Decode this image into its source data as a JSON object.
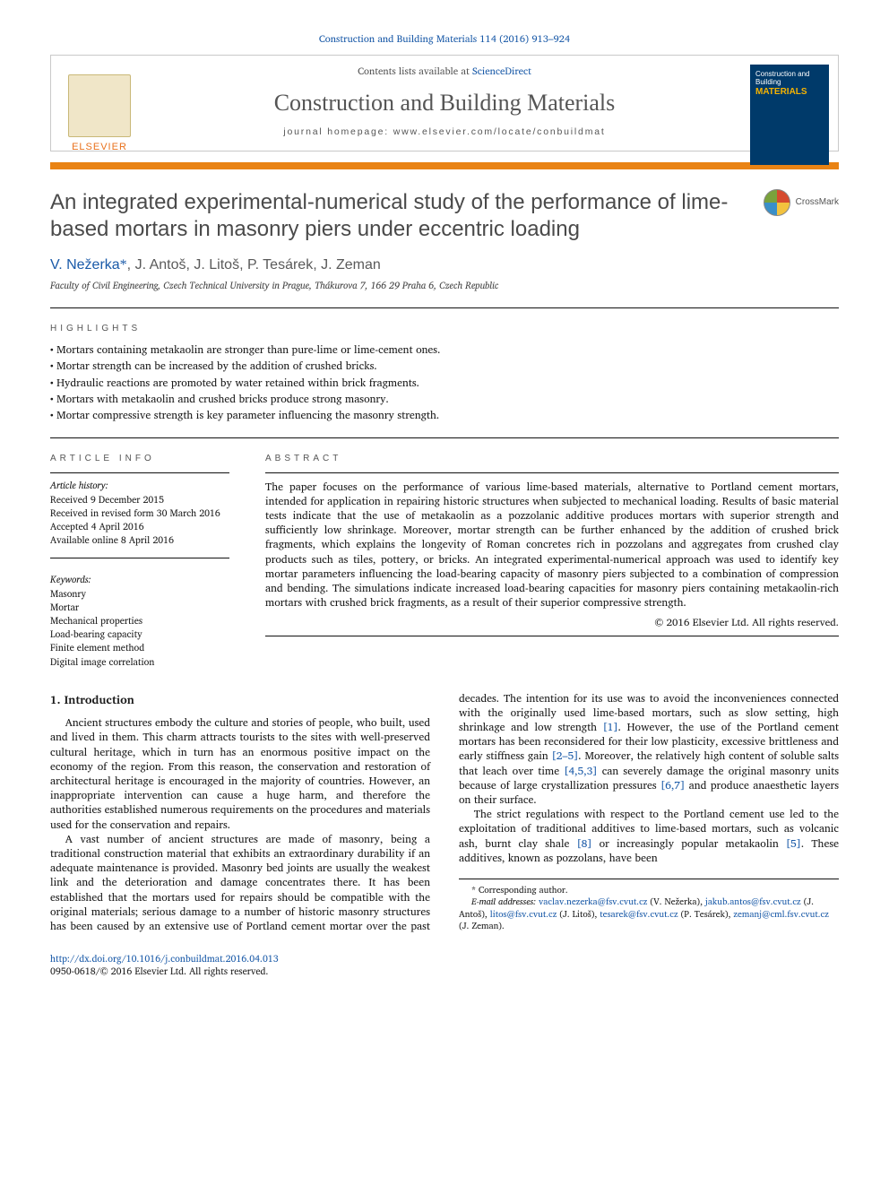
{
  "journal_ref": "Construction and Building Materials 114 (2016) 913–924",
  "header": {
    "contents_prefix": "Contents lists available at ",
    "contents_link": "ScienceDirect",
    "journal_name": "Construction and Building Materials",
    "homepage_prefix": "journal homepage: ",
    "homepage_url": "www.elsevier.com/locate/conbuildmat",
    "publisher": "ELSEVIER",
    "cover_line1": "Construction and Building",
    "cover_line2": "MATERIALS"
  },
  "crossmark_label": "CrossMark",
  "title": "An integrated experimental-numerical study of the performance of lime-based mortars in masonry piers under eccentric loading",
  "authors_html": "V. Nežerka *, J. Antoš, J. Litoš, P. Tesárek, J. Zeman",
  "author_corr": "V. Nežerka",
  "author_rest": ", J. Antoš, J. Litoš, P. Tesárek, J. Zeman",
  "star": "*",
  "affiliation": "Faculty of Civil Engineering, Czech Technical University in Prague, Thákurova 7, 166 29 Praha 6, Czech Republic",
  "sect_heads": {
    "highlights": "HIGHLIGHTS",
    "article_info": "ARTICLE INFO",
    "abstract": "ABSTRACT"
  },
  "highlights": [
    "Mortars containing metakaolin are stronger than pure-lime or lime-cement ones.",
    "Mortar strength can be increased by the addition of crushed bricks.",
    "Hydraulic reactions are promoted by water retained within brick fragments.",
    "Mortars with metakaolin and crushed bricks produce strong masonry.",
    "Mortar compressive strength is key parameter influencing the masonry strength."
  ],
  "article_info": {
    "history_head": "Article history:",
    "history": [
      "Received 9 December 2015",
      "Received in revised form 30 March 2016",
      "Accepted 4 April 2016",
      "Available online 8 April 2016"
    ],
    "keywords_head": "Keywords:",
    "keywords": [
      "Masonry",
      "Mortar",
      "Mechanical properties",
      "Load-bearing capacity",
      "Finite element method",
      "Digital image correlation"
    ]
  },
  "abstract": "The paper focuses on the performance of various lime-based materials, alternative to Portland cement mortars, intended for application in repairing historic structures when subjected to mechanical loading. Results of basic material tests indicate that the use of metakaolin as a pozzolanic additive produces mortars with superior strength and sufficiently low shrinkage. Moreover, mortar strength can be further enhanced by the addition of crushed brick fragments, which explains the longevity of Roman concretes rich in pozzolans and aggregates from crushed clay products such as tiles, pottery, or bricks. An integrated experimental-numerical approach was used to identify key mortar parameters influencing the load-bearing capacity of masonry piers subjected to a combination of compression and bending. The simulations indicate increased load-bearing capacities for masonry piers containing metakaolin-rich mortars with crushed brick fragments, as a result of their superior compressive strength.",
  "copyright": "© 2016 Elsevier Ltd. All rights reserved.",
  "intro_head": "1. Introduction",
  "intro_p1": "Ancient structures embody the culture and stories of people, who built, used and lived in them. This charm attracts tourists to the sites with well-preserved cultural heritage, which in turn has an enormous positive impact on the economy of the region. From this reason, the conservation and restoration of architectural heritage is encouraged in the majority of countries. However, an inappropriate intervention can cause a huge harm, and therefore the authorities established numerous requirements on the procedures and materials used for the conservation and repairs.",
  "intro_p2_a": "A vast number of ancient structures are made of masonry, being a traditional construction material that exhibits an extraordinary durability if an adequate maintenance is provided. Masonry bed joints are usually the weakest link and the deterioration and damage concentrates there. It has been established that the mortars used for repairs should be compatible with the original materials; serious damage to a number of historic masonry structures has been caused by an extensive use of Portland cement mortar over the past decades. The intention for its use was to avoid the inconveniences connected with the originally used lime-based mortars, such as slow setting, high shrinkage and low strength ",
  "intro_p2_b": ". However, the use of the Portland cement mortars has been reconsidered for their low plasticity, excessive brittleness and early stiffness gain ",
  "intro_p2_c": ". Moreover, the relatively high content of soluble salts that leach over time ",
  "intro_p2_d": " can severely damage the original masonry units because of large crystallization pressures ",
  "intro_p2_e": " and produce anaesthetic layers on their surface.",
  "intro_p3_a": "The strict regulations with respect to the Portland cement use led to the exploitation of traditional additives to lime-based mortars, such as volcanic ash, burnt clay shale ",
  "intro_p3_b": " or increasingly popular metakaolin ",
  "intro_p3_c": ". These additives, known as pozzolans, have been",
  "refs": {
    "r1": "[1]",
    "r2_5": "[2–5]",
    "r453": "[4,5,3]",
    "r67": "[6,7]",
    "r8": "[8]",
    "r5": "[5]"
  },
  "footnotes": {
    "corr_label": "* Corresponding author.",
    "emails_label": "E-mail addresses:",
    "emails": [
      {
        "addr": "vaclav.nezerka@fsv.cvut.cz",
        "who": "(V. Nežerka)"
      },
      {
        "addr": "jakub.antos@fsv.cvut.cz",
        "who": "(J. Antoš)"
      },
      {
        "addr": "litos@fsv.cvut.cz",
        "who": "(J. Litoš)"
      },
      {
        "addr": "tesarek@fsv.cvut.cz",
        "who": "(P. Tesárek)"
      },
      {
        "addr": "zemanj@cml.fsv.cvut.cz",
        "who": "(J. Zeman)"
      }
    ]
  },
  "footer": {
    "doi": "http://dx.doi.org/10.1016/j.conbuildmat.2016.04.013",
    "issn_line": "0950-0618/© 2016 Elsevier Ltd. All rights reserved."
  },
  "colors": {
    "accent_orange": "#e98314",
    "link_blue": "#1a5aa8",
    "grey_text": "#555",
    "cover_blue": "#003a6a",
    "cover_yellow": "#f5b301"
  }
}
